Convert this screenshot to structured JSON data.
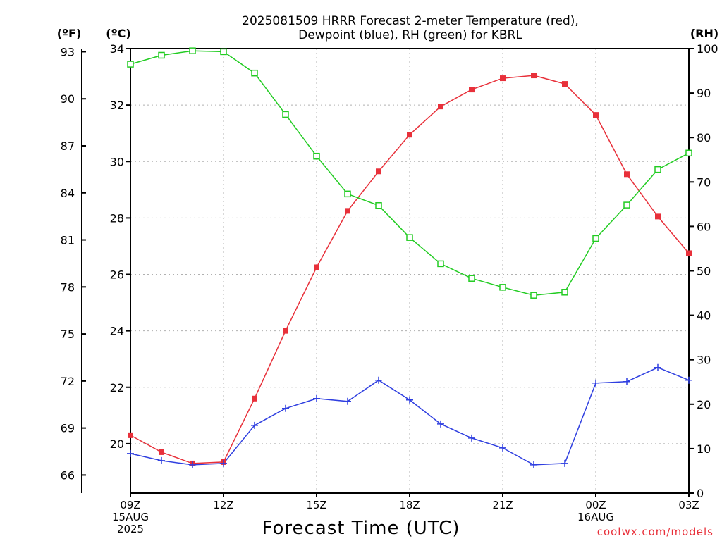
{
  "chart_data": {
    "type": "line",
    "title": [
      "2025081509 HRRR Forecast 2-meter Temperature (red),",
      "Dewpoint (blue), RH (green) for KBRL"
    ],
    "xlabel": "Forecast Time (UTC)",
    "credit": "coolwx.com/models",
    "units": {
      "fahrenheit": "(ºF)",
      "celsius": "(ºC)",
      "rh": "(RH)"
    },
    "x_ticks": [
      {
        "lines": [
          "09Z",
          "15AUG",
          "2025"
        ]
      },
      {
        "lines": [
          "12Z"
        ]
      },
      {
        "lines": [
          "15Z"
        ]
      },
      {
        "lines": [
          "18Z"
        ]
      },
      {
        "lines": [
          "21Z"
        ]
      },
      {
        "lines": [
          "00Z",
          "16AUG"
        ]
      },
      {
        "lines": [
          "03Z"
        ]
      }
    ],
    "x_tick_hours": [
      0,
      3,
      6,
      9,
      12,
      15,
      18
    ],
    "x_range_hours": [
      0,
      18
    ],
    "celsius_axis": {
      "range": [
        18.25,
        34
      ],
      "ticks": [
        "20",
        "22",
        "24",
        "26",
        "28",
        "30",
        "32",
        "34"
      ]
    },
    "fahrenheit_axis": {
      "ticks": [
        "66",
        "69",
        "72",
        "75",
        "78",
        "81",
        "84",
        "87",
        "90",
        "93"
      ]
    },
    "rh_axis": {
      "range": [
        0,
        100
      ],
      "ticks": [
        "0",
        "10",
        "20",
        "30",
        "40",
        "50",
        "60",
        "70",
        "80",
        "90",
        "100"
      ]
    },
    "grid": true,
    "series": [
      {
        "key": "temperature",
        "axis": "celsius",
        "color": "#e8303a",
        "marker": "filled-square",
        "x": [
          0,
          1,
          2,
          3,
          4,
          5,
          6,
          7,
          8,
          9,
          10,
          11,
          12,
          13,
          14,
          15,
          16,
          17,
          18
        ],
        "values": [
          20.3,
          19.7,
          19.3,
          19.35,
          21.6,
          24.0,
          26.25,
          28.25,
          29.65,
          30.95,
          31.95,
          32.55,
          32.95,
          33.05,
          32.75,
          31.65,
          29.55,
          28.05,
          26.75
        ]
      },
      {
        "key": "dewpoint",
        "axis": "celsius",
        "color": "#2f3fe0",
        "marker": "plus",
        "x": [
          0,
          1,
          2,
          3,
          4,
          5,
          6,
          7,
          8,
          9,
          10,
          11,
          12,
          13,
          14,
          15,
          16,
          17,
          18
        ],
        "values": [
          19.65,
          19.4,
          19.25,
          19.3,
          20.65,
          21.25,
          21.6,
          21.5,
          22.25,
          21.55,
          20.7,
          20.2,
          19.85,
          19.25,
          19.3,
          22.15,
          22.2,
          22.7,
          22.25
        ]
      },
      {
        "key": "rh",
        "axis": "rh",
        "color": "#22cc22",
        "marker": "open-square",
        "x": [
          0,
          1,
          2,
          3,
          4,
          5,
          6,
          7,
          8,
          9,
          10,
          11,
          12,
          13,
          14,
          15,
          16,
          17,
          18
        ],
        "values": [
          96.5,
          98.5,
          99.5,
          99.3,
          94.5,
          85.2,
          75.8,
          67.3,
          64.7,
          57.5,
          51.6,
          48.3,
          46.3,
          44.5,
          45.2,
          57.3,
          64.8,
          72.8,
          76.5
        ]
      }
    ]
  }
}
